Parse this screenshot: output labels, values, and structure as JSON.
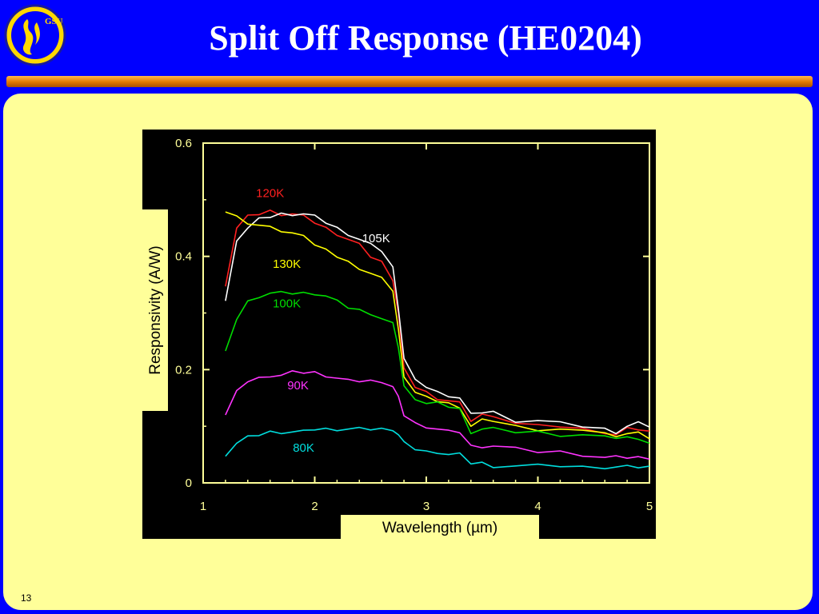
{
  "slide": {
    "title": "Split Off Response (HE0204)",
    "logo_text": "GSU",
    "number": "13"
  },
  "colors": {
    "background": "#0000ff",
    "panel": "#ffff99",
    "plot_bg": "#000000",
    "axes": "#ffff99"
  },
  "chart_data": {
    "type": "line",
    "title": "",
    "xlabel": "Wavelength (µm)",
    "ylabel": "Responsivity  (A/W)",
    "xlim": [
      1,
      5
    ],
    "ylim": [
      0,
      0.6
    ],
    "x_ticks": [
      1,
      2,
      3,
      4,
      5
    ],
    "x_tick_labels": [
      "1",
      "2",
      "3",
      "4",
      "5"
    ],
    "y_ticks": [
      0,
      0.2,
      0.4,
      0.6
    ],
    "y_tick_labels": [
      "0",
      "0.2",
      "0.4",
      "0.6"
    ],
    "grid": false,
    "legend": "inline labels",
    "x": [
      1.2,
      1.3,
      1.4,
      1.5,
      1.6,
      1.7,
      1.8,
      1.9,
      2.0,
      2.1,
      2.2,
      2.3,
      2.4,
      2.5,
      2.6,
      2.7,
      2.75,
      2.8,
      2.9,
      3.0,
      3.1,
      3.2,
      3.3,
      3.4,
      3.5,
      3.6,
      3.8,
      4.0,
      4.2,
      4.4,
      4.6,
      4.7,
      4.8,
      4.9,
      5.0
    ],
    "series": [
      {
        "name": "120K",
        "color": "#ff2020",
        "label_at": [
          1.6,
          0.505
        ],
        "values": [
          0.35,
          0.45,
          0.47,
          0.475,
          0.48,
          0.475,
          0.475,
          0.47,
          0.46,
          0.45,
          0.44,
          0.43,
          0.42,
          0.4,
          0.39,
          0.36,
          0.3,
          0.2,
          0.17,
          0.16,
          0.15,
          0.145,
          0.14,
          0.11,
          0.12,
          0.12,
          0.105,
          0.1,
          0.1,
          0.095,
          0.09,
          0.085,
          0.095,
          0.095,
          0.09
        ]
      },
      {
        "name": "105K",
        "color": "#ffffff",
        "label_at": [
          2.55,
          0.425
        ],
        "values": [
          0.32,
          0.43,
          0.45,
          0.465,
          0.47,
          0.475,
          0.475,
          0.475,
          0.47,
          0.46,
          0.45,
          0.44,
          0.43,
          0.42,
          0.41,
          0.38,
          0.31,
          0.22,
          0.18,
          0.17,
          0.16,
          0.155,
          0.15,
          0.12,
          0.125,
          0.125,
          0.11,
          0.11,
          0.105,
          0.1,
          0.095,
          0.09,
          0.1,
          0.105,
          0.1
        ]
      },
      {
        "name": "130K",
        "color": "#ffff00",
        "label_at": [
          1.75,
          0.38
        ],
        "values": [
          0.48,
          0.47,
          0.46,
          0.455,
          0.45,
          0.445,
          0.44,
          0.44,
          0.42,
          0.41,
          0.4,
          0.39,
          0.38,
          0.37,
          0.36,
          0.34,
          0.27,
          0.19,
          0.16,
          0.15,
          0.145,
          0.14,
          0.135,
          0.1,
          0.11,
          0.11,
          0.1,
          0.095,
          0.095,
          0.09,
          0.09,
          0.08,
          0.09,
          0.09,
          0.075
        ]
      },
      {
        "name": "100K",
        "color": "#00dd00",
        "label_at": [
          1.75,
          0.31
        ],
        "values": [
          0.23,
          0.29,
          0.32,
          0.33,
          0.335,
          0.335,
          0.335,
          0.335,
          0.335,
          0.33,
          0.32,
          0.31,
          0.305,
          0.3,
          0.29,
          0.28,
          0.24,
          0.17,
          0.15,
          0.14,
          0.14,
          0.135,
          0.13,
          0.09,
          0.095,
          0.095,
          0.09,
          0.09,
          0.085,
          0.085,
          0.08,
          0.08,
          0.08,
          0.08,
          0.07
        ]
      },
      {
        "name": "90K",
        "color": "#ff33ff",
        "label_at": [
          1.85,
          0.165
        ],
        "values": [
          0.12,
          0.16,
          0.18,
          0.185,
          0.19,
          0.19,
          0.195,
          0.195,
          0.195,
          0.19,
          0.185,
          0.18,
          0.18,
          0.18,
          0.18,
          0.17,
          0.15,
          0.12,
          0.105,
          0.1,
          0.095,
          0.09,
          0.09,
          0.065,
          0.065,
          0.065,
          0.06,
          0.055,
          0.055,
          0.05,
          0.045,
          0.045,
          0.045,
          0.045,
          0.045
        ]
      },
      {
        "name": "80K",
        "color": "#00dddd",
        "label_at": [
          1.9,
          0.055
        ],
        "values": [
          0.05,
          0.07,
          0.08,
          0.085,
          0.09,
          0.09,
          0.09,
          0.09,
          0.095,
          0.095,
          0.095,
          0.095,
          0.095,
          0.095,
          0.095,
          0.095,
          0.085,
          0.07,
          0.06,
          0.055,
          0.055,
          0.05,
          0.05,
          0.035,
          0.035,
          0.03,
          0.03,
          0.03,
          0.03,
          0.028,
          0.028,
          0.028,
          0.028,
          0.028,
          0.028
        ]
      }
    ]
  }
}
